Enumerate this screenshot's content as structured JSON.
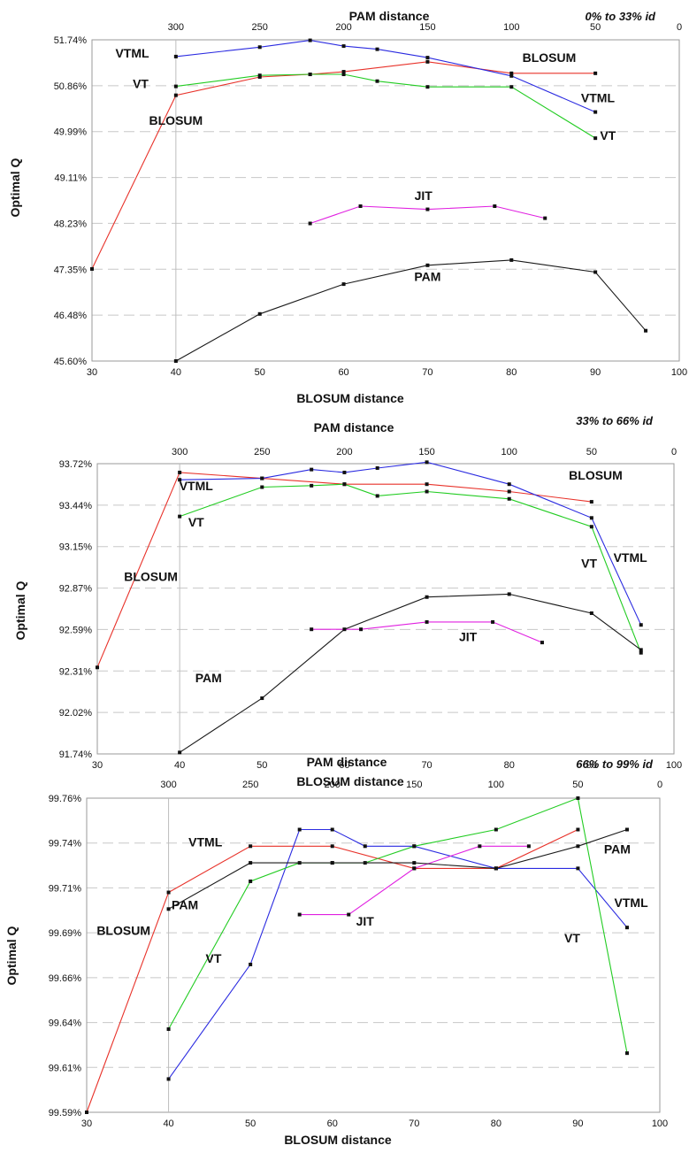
{
  "chart_data": [
    {
      "type": "line",
      "title": "",
      "range_label": "0% to 33% id",
      "xlabel": "BLOSUM distance",
      "x2label": "PAM distance",
      "ylabel": "Optimal Q",
      "xlim": [
        30,
        100
      ],
      "x2lim": [
        350,
        0
      ],
      "x_ticks": [
        30,
        40,
        50,
        60,
        70,
        80,
        90,
        100
      ],
      "x2_ticks": [
        300,
        250,
        200,
        150,
        100,
        50,
        0
      ],
      "ylim": [
        45.6,
        51.74
      ],
      "y_ticks": [
        "45.60%",
        "46.48%",
        "47.35%",
        "48.23%",
        "49.11%",
        "49.99%",
        "50.86%",
        "51.74%"
      ],
      "series": [
        {
          "name": "BLOSUM",
          "color": "#e8322a",
          "points": [
            [
              30,
              47.36
            ],
            [
              40,
              50.68
            ],
            [
              50,
              51.03
            ],
            [
              56,
              51.08
            ],
            [
              60,
              51.13
            ],
            [
              70,
              51.32
            ],
            [
              80,
              51.1
            ],
            [
              90,
              51.1
            ]
          ]
        },
        {
          "name": "VTML",
          "color": "#2a2ae0",
          "points": [
            [
              40,
              51.42
            ],
            [
              50,
              51.6
            ],
            [
              56,
              51.73
            ],
            [
              60,
              51.62
            ],
            [
              64,
              51.56
            ],
            [
              70,
              51.4
            ],
            [
              80,
              51.05
            ],
            [
              90,
              50.36
            ]
          ]
        },
        {
          "name": "VT",
          "color": "#22cc22",
          "points": [
            [
              40,
              50.85
            ],
            [
              50,
              51.06
            ],
            [
              56,
              51.08
            ],
            [
              60,
              51.08
            ],
            [
              64,
              50.95
            ],
            [
              70,
              50.84
            ],
            [
              80,
              50.84
            ],
            [
              90,
              49.86
            ]
          ]
        },
        {
          "name": "JIT",
          "color": "#e020e0",
          "points": [
            [
              56,
              48.23
            ],
            [
              62,
              48.56
            ],
            [
              70,
              48.5
            ],
            [
              78,
              48.56
            ],
            [
              84,
              48.33
            ]
          ]
        },
        {
          "name": "PAM",
          "color": "#1a1a1a",
          "points": [
            [
              40,
              45.6
            ],
            [
              50,
              46.5
            ],
            [
              60,
              47.07
            ],
            [
              70,
              47.43
            ],
            [
              80,
              47.53
            ],
            [
              90,
              47.3
            ],
            [
              96,
              46.18
            ]
          ]
        }
      ],
      "labels": [
        {
          "text": "VTML",
          "x": 34.8,
          "y": 51.4
        },
        {
          "text": "BLOSUM",
          "x": 84.5,
          "y": 51.32
        },
        {
          "text": "VT",
          "x": 35.8,
          "y": 50.82
        },
        {
          "text": "BLOSUM",
          "x": 40,
          "y": 50.12
        },
        {
          "text": "VTML",
          "x": 90.3,
          "y": 50.55
        },
        {
          "text": "VT",
          "x": 91.5,
          "y": 49.83
        },
        {
          "text": "JIT",
          "x": 69.5,
          "y": 48.68
        },
        {
          "text": "PAM",
          "x": 70,
          "y": 47.13
        }
      ]
    },
    {
      "type": "line",
      "title": "",
      "range_label": "33% to 66% id",
      "xlabel": "BLOSUM distance",
      "x2label": "PAM distance",
      "ylabel": "Optimal Q",
      "xlim": [
        30,
        100
      ],
      "x2lim": [
        350,
        0
      ],
      "x_ticks": [
        30,
        40,
        50,
        60,
        70,
        80,
        90,
        100
      ],
      "x2_ticks": [
        300,
        250,
        200,
        150,
        100,
        50,
        0
      ],
      "ylim": [
        91.74,
        93.72
      ],
      "y_ticks": [
        "91.74%",
        "92.02%",
        "92.31%",
        "92.59%",
        "92.87%",
        "93.15%",
        "93.44%",
        "93.72%"
      ],
      "series": [
        {
          "name": "BLOSUM",
          "color": "#e8322a",
          "points": [
            [
              30,
              92.33
            ],
            [
              40,
              93.66
            ],
            [
              50,
              93.62
            ],
            [
              60,
              93.58
            ],
            [
              70,
              93.58
            ],
            [
              80,
              93.53
            ],
            [
              90,
              93.46
            ]
          ]
        },
        {
          "name": "VTML",
          "color": "#2a2ae0",
          "points": [
            [
              40,
              93.61
            ],
            [
              50,
              93.62
            ],
            [
              56,
              93.68
            ],
            [
              60,
              93.66
            ],
            [
              64,
              93.69
            ],
            [
              70,
              93.73
            ],
            [
              80,
              93.58
            ],
            [
              90,
              93.35
            ],
            [
              96,
              92.62
            ]
          ]
        },
        {
          "name": "VT",
          "color": "#22cc22",
          "points": [
            [
              40,
              93.36
            ],
            [
              50,
              93.56
            ],
            [
              56,
              93.57
            ],
            [
              60,
              93.58
            ],
            [
              64,
              93.5
            ],
            [
              70,
              93.53
            ],
            [
              80,
              93.48
            ],
            [
              90,
              93.29
            ],
            [
              96,
              92.43
            ]
          ]
        },
        {
          "name": "JIT",
          "color": "#e020e0",
          "points": [
            [
              56,
              92.59
            ],
            [
              62,
              92.59
            ],
            [
              70,
              92.64
            ],
            [
              78,
              92.64
            ],
            [
              84,
              92.5
            ]
          ]
        },
        {
          "name": "PAM",
          "color": "#1a1a1a",
          "points": [
            [
              40,
              91.75
            ],
            [
              50,
              92.12
            ],
            [
              60,
              92.59
            ],
            [
              70,
              92.81
            ],
            [
              80,
              92.83
            ],
            [
              90,
              92.7
            ],
            [
              96,
              92.45
            ]
          ]
        }
      ],
      "labels": [
        {
          "text": "VTML",
          "x": 42,
          "y": 93.54
        },
        {
          "text": "BLOSUM",
          "x": 90.5,
          "y": 93.61
        },
        {
          "text": "VT",
          "x": 42,
          "y": 93.29
        },
        {
          "text": "BLOSUM",
          "x": 36.5,
          "y": 92.92
        },
        {
          "text": "VT",
          "x": 89.7,
          "y": 93.01
        },
        {
          "text": "VTML",
          "x": 94.7,
          "y": 93.05
        },
        {
          "text": "JIT",
          "x": 75,
          "y": 92.51
        },
        {
          "text": "PAM",
          "x": 43.5,
          "y": 92.23
        }
      ]
    },
    {
      "type": "line",
      "title": "",
      "range_label": "66% to 99% id",
      "xlabel": "BLOSUM distance",
      "x2label": "PAM distance",
      "ylabel": "Optimal Q",
      "xlim": [
        30,
        100
      ],
      "x2lim": [
        350,
        0
      ],
      "x_ticks": [
        30,
        40,
        50,
        60,
        70,
        80,
        90,
        100
      ],
      "x2_ticks": [
        300,
        250,
        200,
        150,
        100,
        50,
        0
      ],
      "ylim": [
        99.59,
        99.76
      ],
      "y_ticks": [
        "99.59%",
        "99.61%",
        "99.64%",
        "99.66%",
        "99.69%",
        "99.71%",
        "99.74%",
        "99.76%"
      ],
      "series": [
        {
          "name": "BLOSUM",
          "color": "#e8322a",
          "points": [
            [
              30,
              99.59
            ],
            [
              40,
              99.709
            ],
            [
              50,
              99.734
            ],
            [
              60,
              99.734
            ],
            [
              70,
              99.722
            ],
            [
              80,
              99.722
            ],
            [
              90,
              99.743
            ]
          ]
        },
        {
          "name": "VTML",
          "color": "#2a2ae0",
          "points": [
            [
              40,
              99.608
            ],
            [
              50,
              99.67
            ],
            [
              56,
              99.743
            ],
            [
              60,
              99.743
            ],
            [
              64,
              99.734
            ],
            [
              70,
              99.734
            ],
            [
              80,
              99.722
            ],
            [
              90,
              99.722
            ],
            [
              96,
              99.69
            ]
          ]
        },
        {
          "name": "VT",
          "color": "#22cc22",
          "points": [
            [
              40,
              99.635
            ],
            [
              50,
              99.715
            ],
            [
              56,
              99.725
            ],
            [
              60,
              99.725
            ],
            [
              64,
              99.725
            ],
            [
              70,
              99.734
            ],
            [
              80,
              99.743
            ],
            [
              90,
              99.76
            ],
            [
              96,
              99.622
            ]
          ]
        },
        {
          "name": "JIT",
          "color": "#e020e0",
          "points": [
            [
              56,
              99.697
            ],
            [
              62,
              99.697
            ],
            [
              70,
              99.722
            ],
            [
              78,
              99.734
            ],
            [
              84,
              99.734
            ]
          ]
        },
        {
          "name": "PAM",
          "color": "#1a1a1a",
          "points": [
            [
              40,
              99.7
            ],
            [
              50,
              99.725
            ],
            [
              60,
              99.725
            ],
            [
              70,
              99.725
            ],
            [
              80,
              99.722
            ],
            [
              90,
              99.734
            ],
            [
              96,
              99.743
            ]
          ]
        }
      ],
      "labels": [
        {
          "text": "VTML",
          "x": 44.5,
          "y": 99.734
        },
        {
          "text": "PAM",
          "x": 42,
          "y": 99.7
        },
        {
          "text": "BLOSUM",
          "x": 34.5,
          "y": 99.686
        },
        {
          "text": "VT",
          "x": 45.5,
          "y": 99.671
        },
        {
          "text": "JIT",
          "x": 64,
          "y": 99.691
        },
        {
          "text": "PAM",
          "x": 94.8,
          "y": 99.73
        },
        {
          "text": "VTML",
          "x": 96.5,
          "y": 99.701
        },
        {
          "text": "VT",
          "x": 89.3,
          "y": 99.682
        }
      ]
    }
  ]
}
